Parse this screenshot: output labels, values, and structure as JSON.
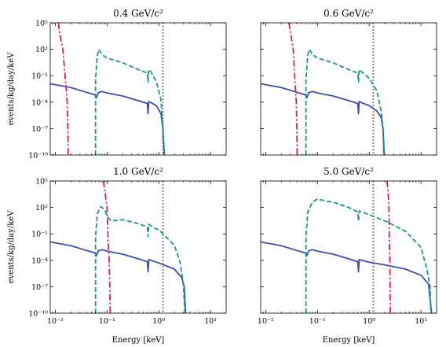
{
  "chart_data": {
    "type": "line",
    "xlabel": "Energy [keV]",
    "ylabel": "events/kg/day/keV",
    "xscale": "log",
    "yscale": "log",
    "xlim": [
      0.008,
      20
    ],
    "ylim": [
      1e-10,
      100000
    ],
    "x_ticks": [
      "10⁻²",
      "10⁻¹",
      "10⁰",
      "10¹"
    ],
    "y_ticks": [
      "10⁻¹⁰",
      "10⁻⁷",
      "10⁻⁴",
      "10⁻¹",
      "10²",
      "10⁵"
    ],
    "x_tick_values": [
      0.01,
      0.1,
      1,
      10
    ],
    "y_tick_values": [
      1e-10,
      1e-07,
      0.0001,
      0.1,
      100,
      100000
    ],
    "threshold_line_x": 1.2,
    "colors": {
      "solid": "#3a4fb0",
      "dashed": "#18978a",
      "dashdot": "#d81b60",
      "threshold": "#888888"
    },
    "panels": [
      {
        "title": "0.4 GeV/c²",
        "series": [
          {
            "style": "solid",
            "points": [
              [
                0.008,
                0.012
              ],
              [
                0.02,
                0.0045
              ],
              [
                0.04,
                0.0013
              ],
              [
                0.058,
                0.0007
              ],
              [
                0.062,
                0.0003
              ],
              [
                0.068,
                0.0012
              ],
              [
                0.08,
                0.0016
              ],
              [
                0.1,
                0.0011
              ],
              [
                0.2,
                0.0005
              ],
              [
                0.4,
                0.00015
              ],
              [
                0.6,
                7e-05
              ],
              [
                0.62,
                5e-06
              ],
              [
                0.64,
                0.00012
              ],
              [
                0.7,
                9e-05
              ],
              [
                0.9,
                4e-05
              ],
              [
                1.1,
                5e-06
              ],
              [
                1.2,
                1e-07
              ],
              [
                1.28,
                1e-10
              ]
            ]
          },
          {
            "style": "dashed",
            "points": [
              [
                0.06,
                1e-10
              ],
              [
                0.06,
                0.05
              ],
              [
                0.065,
                20
              ],
              [
                0.07,
                100
              ],
              [
                0.08,
                25
              ],
              [
                0.1,
                10
              ],
              [
                0.2,
                3
              ],
              [
                0.4,
                0.5
              ],
              [
                0.6,
                0.2
              ],
              [
                0.62,
                0.02
              ],
              [
                0.64,
                0.5
              ],
              [
                0.7,
                0.3
              ],
              [
                0.9,
                0.02
              ],
              [
                1.1,
                0.0002
              ],
              [
                1.2,
                1e-07
              ],
              [
                1.25,
                1e-10
              ]
            ]
          },
          {
            "style": "dashdot",
            "points": [
              [
                0.0115,
                100000
              ],
              [
                0.012,
                10000
              ],
              [
                0.014,
                100
              ],
              [
                0.016,
                0.01
              ],
              [
                0.017,
                0.0001
              ],
              [
                0.0175,
                1e-07
              ],
              [
                0.0178,
                1e-10
              ]
            ]
          }
        ]
      },
      {
        "title": "0.6 GeV/c²",
        "series": [
          {
            "style": "solid",
            "points": [
              [
                0.008,
                0.012
              ],
              [
                0.02,
                0.0045
              ],
              [
                0.04,
                0.0013
              ],
              [
                0.058,
                0.0007
              ],
              [
                0.062,
                0.0003
              ],
              [
                0.068,
                0.0012
              ],
              [
                0.08,
                0.0016
              ],
              [
                0.1,
                0.0011
              ],
              [
                0.2,
                0.0005
              ],
              [
                0.4,
                0.00015
              ],
              [
                0.6,
                7e-05
              ],
              [
                0.62,
                5e-06
              ],
              [
                0.64,
                0.00012
              ],
              [
                0.7,
                9e-05
              ],
              [
                1,
                4e-05
              ],
              [
                1.4,
                1e-05
              ],
              [
                1.7,
                2e-06
              ],
              [
                1.85,
                1e-07
              ],
              [
                1.95,
                1e-10
              ]
            ]
          },
          {
            "style": "dashed",
            "points": [
              [
                0.06,
                1e-10
              ],
              [
                0.06,
                0.05
              ],
              [
                0.065,
                20
              ],
              [
                0.07,
                100
              ],
              [
                0.08,
                25
              ],
              [
                0.1,
                10
              ],
              [
                0.2,
                3
              ],
              [
                0.4,
                0.5
              ],
              [
                0.6,
                0.2
              ],
              [
                0.62,
                0.02
              ],
              [
                0.64,
                0.5
              ],
              [
                0.7,
                0.3
              ],
              [
                1,
                0.05
              ],
              [
                1.4,
                0.002
              ],
              [
                1.7,
                1e-05
              ],
              [
                1.85,
                1e-07
              ],
              [
                1.9,
                1e-10
              ]
            ]
          },
          {
            "style": "dashdot",
            "points": [
              [
                0.028,
                100000
              ],
              [
                0.03,
                10000
              ],
              [
                0.034,
                100
              ],
              [
                0.037,
                0.01
              ],
              [
                0.039,
                0.0001
              ],
              [
                0.04,
                1e-07
              ],
              [
                0.0405,
                1e-10
              ]
            ]
          }
        ]
      },
      {
        "title": "1.0 GeV/c²",
        "series": [
          {
            "style": "solid",
            "points": [
              [
                0.008,
                0.012
              ],
              [
                0.02,
                0.0045
              ],
              [
                0.04,
                0.0013
              ],
              [
                0.058,
                0.0007
              ],
              [
                0.062,
                0.0003
              ],
              [
                0.068,
                0.0012
              ],
              [
                0.08,
                0.0016
              ],
              [
                0.1,
                0.0011
              ],
              [
                0.2,
                0.0005
              ],
              [
                0.4,
                0.00015
              ],
              [
                0.6,
                7e-05
              ],
              [
                0.62,
                5e-06
              ],
              [
                0.64,
                0.00012
              ],
              [
                0.7,
                0.0001
              ],
              [
                1,
                5e-05
              ],
              [
                2,
                1e-05
              ],
              [
                2.8,
                1e-06
              ],
              [
                3.1,
                1e-07
              ],
              [
                3.3,
                1e-10
              ]
            ]
          },
          {
            "style": "dashed",
            "points": [
              [
                0.06,
                1e-10
              ],
              [
                0.06,
                0.05
              ],
              [
                0.065,
                20
              ],
              [
                0.075,
                120
              ],
              [
                0.09,
                60
              ],
              [
                0.1,
                10
              ],
              [
                0.12,
                3
              ],
              [
                0.2,
                4
              ],
              [
                0.4,
                1.5
              ],
              [
                0.6,
                0.6
              ],
              [
                0.62,
                0.05
              ],
              [
                0.64,
                1.2
              ],
              [
                0.8,
                0.5
              ],
              [
                1,
                0.3
              ],
              [
                2,
                0.005
              ],
              [
                2.6,
                5e-05
              ],
              [
                3,
                1e-07
              ],
              [
                3.2,
                1e-10
              ]
            ]
          },
          {
            "style": "dashdot",
            "points": [
              [
                0.085,
                100000
              ],
              [
                0.09,
                10000
              ],
              [
                0.1,
                100
              ],
              [
                0.105,
                0.01
              ],
              [
                0.11,
                0.0001
              ],
              [
                0.113,
                1e-07
              ],
              [
                0.115,
                1e-10
              ]
            ]
          }
        ]
      },
      {
        "title": "5.0 GeV/c²",
        "series": [
          {
            "style": "solid",
            "points": [
              [
                0.008,
                0.012
              ],
              [
                0.02,
                0.0045
              ],
              [
                0.04,
                0.0013
              ],
              [
                0.058,
                0.0007
              ],
              [
                0.062,
                0.0003
              ],
              [
                0.068,
                0.0012
              ],
              [
                0.08,
                0.0016
              ],
              [
                0.1,
                0.0011
              ],
              [
                0.2,
                0.0005
              ],
              [
                0.4,
                0.00015
              ],
              [
                0.6,
                7e-05
              ],
              [
                0.62,
                5e-06
              ],
              [
                0.64,
                0.00012
              ],
              [
                1,
                6e-05
              ],
              [
                2,
                3e-05
              ],
              [
                5,
                1e-05
              ],
              [
                10,
                2e-06
              ],
              [
                14,
                2e-07
              ],
              [
                16,
                1e-10
              ]
            ]
          },
          {
            "style": "dashed",
            "points": [
              [
                0.06,
                1e-10
              ],
              [
                0.06,
                0.05
              ],
              [
                0.065,
                30
              ],
              [
                0.08,
                400
              ],
              [
                0.1,
                900
              ],
              [
                0.15,
                500
              ],
              [
                0.2,
                400
              ],
              [
                0.4,
                100
              ],
              [
                0.6,
                30
              ],
              [
                0.62,
                3
              ],
              [
                0.64,
                40
              ],
              [
                1,
                15
              ],
              [
                2,
                3
              ],
              [
                5,
                0.2
              ],
              [
                10,
                0.003
              ],
              [
                13,
                1e-05
              ],
              [
                15,
                1e-07
              ],
              [
                15.5,
                1e-10
              ]
            ]
          },
          {
            "style": "dashdot",
            "points": [
              [
                2.2,
                100000
              ],
              [
                2.3,
                10000
              ],
              [
                2.4,
                100
              ],
              [
                2.45,
                0.01
              ],
              [
                2.5,
                0.0001
              ],
              [
                2.53,
                1e-07
              ],
              [
                2.55,
                1e-10
              ]
            ]
          }
        ]
      }
    ]
  }
}
